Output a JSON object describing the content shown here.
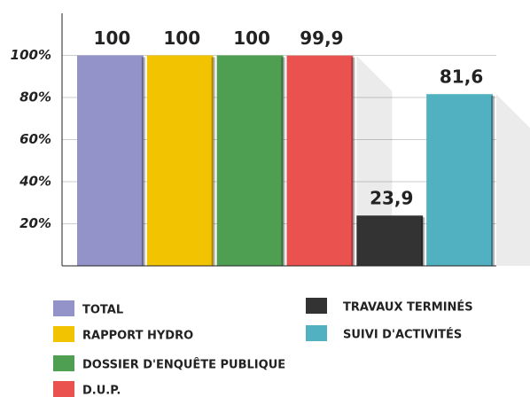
{
  "chart_data": {
    "type": "bar",
    "categories": [
      "TOTAL",
      "RAPPORT HYDRO",
      "DOSSIER D'ENQUÊTE PUBLIQUE",
      "D.U.P.",
      "TRAVAUX TERMINÉS",
      "SUIVI D'ACTIVITÉS"
    ],
    "values": [
      100,
      100,
      100,
      99.9,
      23.9,
      81.6
    ],
    "value_labels": [
      "100",
      "100",
      "100",
      "99,9",
      "23,9",
      "81,6"
    ],
    "colors": [
      "#9393c9",
      "#f2c300",
      "#4f9f52",
      "#e9524f",
      "#333333",
      "#52b1c0"
    ],
    "ylim": [
      0,
      120
    ],
    "yticks": [
      {
        "value": 20,
        "label": "20%"
      },
      {
        "value": 40,
        "label": "40%"
      },
      {
        "value": 60,
        "label": "60%"
      },
      {
        "value": 80,
        "label": "80%"
      },
      {
        "value": 100,
        "label": "100%"
      }
    ],
    "grid": true
  }
}
